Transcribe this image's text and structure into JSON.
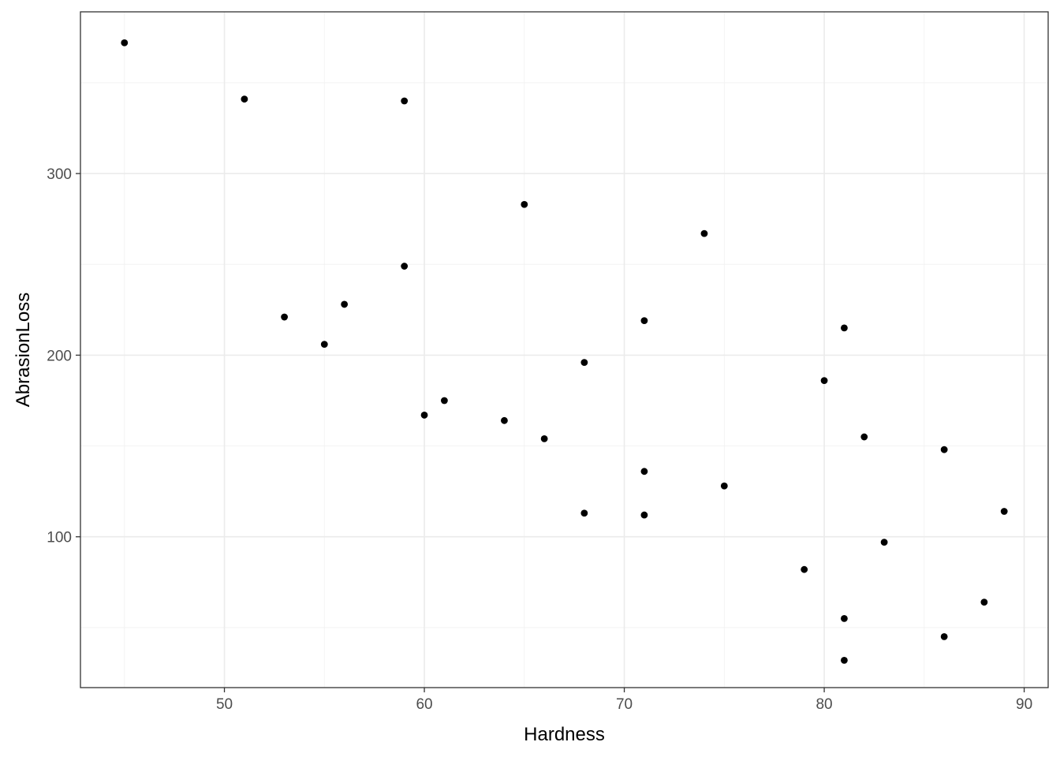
{
  "chart_data": {
    "type": "scatter",
    "title": "",
    "xlabel": "Hardness",
    "ylabel": "AbrasionLoss",
    "xlim": [
      42.8,
      91.2
    ],
    "ylim": [
      16.95,
      389.05
    ],
    "x_ticks": [
      50,
      60,
      70,
      80,
      90
    ],
    "x_minor_ticks": [
      45,
      55,
      65,
      75,
      85
    ],
    "y_ticks": [
      100,
      200,
      300
    ],
    "y_minor_ticks": [
      50,
      150,
      250,
      350
    ],
    "grid": true,
    "legend": "none",
    "point_color": "#000000",
    "points": [
      {
        "x": 45,
        "y": 372
      },
      {
        "x": 51,
        "y": 341
      },
      {
        "x": 53,
        "y": 221
      },
      {
        "x": 55,
        "y": 206
      },
      {
        "x": 56,
        "y": 228
      },
      {
        "x": 59,
        "y": 340
      },
      {
        "x": 59,
        "y": 249
      },
      {
        "x": 60,
        "y": 167
      },
      {
        "x": 61,
        "y": 175
      },
      {
        "x": 64,
        "y": 164
      },
      {
        "x": 65,
        "y": 283
      },
      {
        "x": 66,
        "y": 154
      },
      {
        "x": 68,
        "y": 196
      },
      {
        "x": 68,
        "y": 113
      },
      {
        "x": 71,
        "y": 219
      },
      {
        "x": 71,
        "y": 136
      },
      {
        "x": 71,
        "y": 112
      },
      {
        "x": 74,
        "y": 267
      },
      {
        "x": 75,
        "y": 128
      },
      {
        "x": 79,
        "y": 82
      },
      {
        "x": 80,
        "y": 186
      },
      {
        "x": 81,
        "y": 215
      },
      {
        "x": 81,
        "y": 55
      },
      {
        "x": 81,
        "y": 32
      },
      {
        "x": 82,
        "y": 155
      },
      {
        "x": 83,
        "y": 97
      },
      {
        "x": 86,
        "y": 148
      },
      {
        "x": 86,
        "y": 45
      },
      {
        "x": 88,
        "y": 64
      },
      {
        "x": 89,
        "y": 114
      }
    ]
  }
}
